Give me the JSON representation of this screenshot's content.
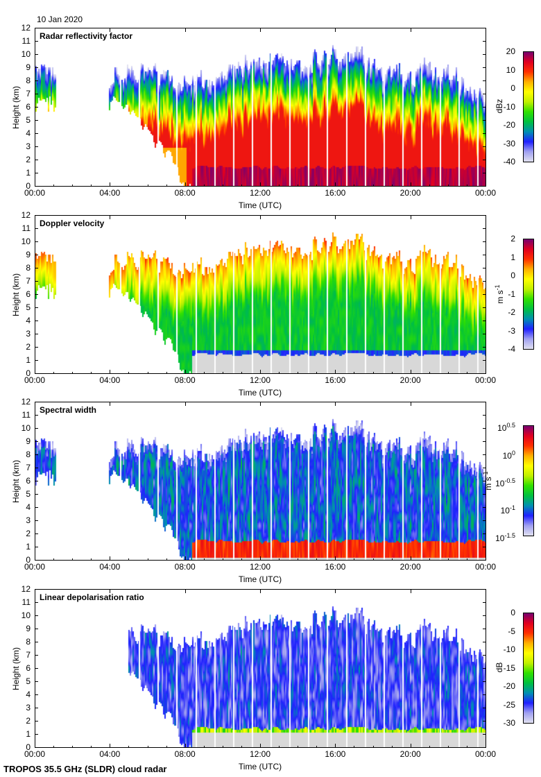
{
  "date": "10 Jan 2020",
  "footer": "TROPOS 35.5 GHz (SLDR) cloud radar",
  "colors": {
    "colormap": [
      "#e0e0f0",
      "#a0a0f0",
      "#2020ff",
      "#0090b0",
      "#00c040",
      "#30e000",
      "#c0f000",
      "#ffff00",
      "#ffb000",
      "#ff3000",
      "#e00020",
      "#780070"
    ],
    "below_layer_gray": "#d8d8d8"
  },
  "chart_data": {
    "type": "heatmap",
    "x_label": "Time (UTC)",
    "x_ticks": [
      "00:00",
      "04:00",
      "08:00",
      "12:00",
      "16:00",
      "20:00",
      "00:00"
    ],
    "x_range_hours": [
      0,
      24
    ],
    "y_label": "Height (km)",
    "y_ticks": [
      "0",
      "1",
      "2",
      "3",
      "4",
      "5",
      "6",
      "7",
      "8",
      "9",
      "10",
      "11",
      "12"
    ],
    "y_range_km": [
      0,
      12
    ],
    "hours": [
      0,
      1,
      2,
      3,
      4,
      5,
      6,
      7,
      8,
      9,
      10,
      11,
      12,
      13,
      14,
      15,
      16,
      17,
      18,
      19,
      20,
      21,
      22,
      23,
      24
    ],
    "cloud_top_km": [
      8.8,
      8.6,
      0,
      0,
      8.4,
      8.5,
      8.8,
      8.2,
      8.0,
      8.0,
      8.5,
      9.0,
      9.5,
      9.7,
      9.0,
      9.8,
      10.0,
      10.0,
      9.0,
      8.5,
      8.5,
      9.0,
      8.5,
      7.5,
      7.0
    ],
    "cloud_base_km": [
      6.5,
      6.5,
      0,
      0,
      7.0,
      5.5,
      4.0,
      2.5,
      0,
      0,
      0,
      0,
      0,
      0,
      0,
      0,
      0,
      0,
      0,
      0,
      0,
      0,
      0,
      0,
      0
    ],
    "liquid_layer_km": 1.6,
    "panels": [
      {
        "title": "Radar reflectivity factor",
        "unit": "dBz",
        "unit_sup": "",
        "range": [
          -40,
          20
        ],
        "scale": "linear",
        "cbar_ticks": [
          {
            "t": "20"
          },
          {
            "t": "10"
          },
          {
            "t": "0"
          },
          {
            "t": "-10"
          },
          {
            "t": "-20"
          },
          {
            "t": "-30"
          },
          {
            "t": "-40"
          }
        ]
      },
      {
        "title": "Doppler velocity",
        "unit": "m s",
        "unit_sup": "-1",
        "range": [
          -4,
          2
        ],
        "scale": "linear",
        "cbar_ticks": [
          {
            "t": "2"
          },
          {
            "t": "1"
          },
          {
            "t": "0"
          },
          {
            "t": "-1"
          },
          {
            "t": "-2"
          },
          {
            "t": "-3"
          },
          {
            "t": "-4"
          }
        ]
      },
      {
        "title": "Spectral width",
        "unit": "m s",
        "unit_sup": "-1",
        "range": [
          -1.5,
          0.5
        ],
        "scale": "log10",
        "cbar_ticks": [
          {
            "t": "10",
            "s": "0.5"
          },
          {
            "t": "10",
            "s": "0"
          },
          {
            "t": "10",
            "s": "-0.5"
          },
          {
            "t": "10",
            "s": "-1"
          },
          {
            "t": "10",
            "s": "-1.5"
          }
        ]
      },
      {
        "title": "Linear depolarisation ratio",
        "unit": "dB",
        "unit_sup": "",
        "range": [
          -30,
          0
        ],
        "scale": "linear",
        "cbar_ticks": [
          {
            "t": "0"
          },
          {
            "t": "-5"
          },
          {
            "t": "-10"
          },
          {
            "t": "-15"
          },
          {
            "t": "-20"
          },
          {
            "t": "-25"
          },
          {
            "t": "-30"
          }
        ]
      }
    ]
  }
}
